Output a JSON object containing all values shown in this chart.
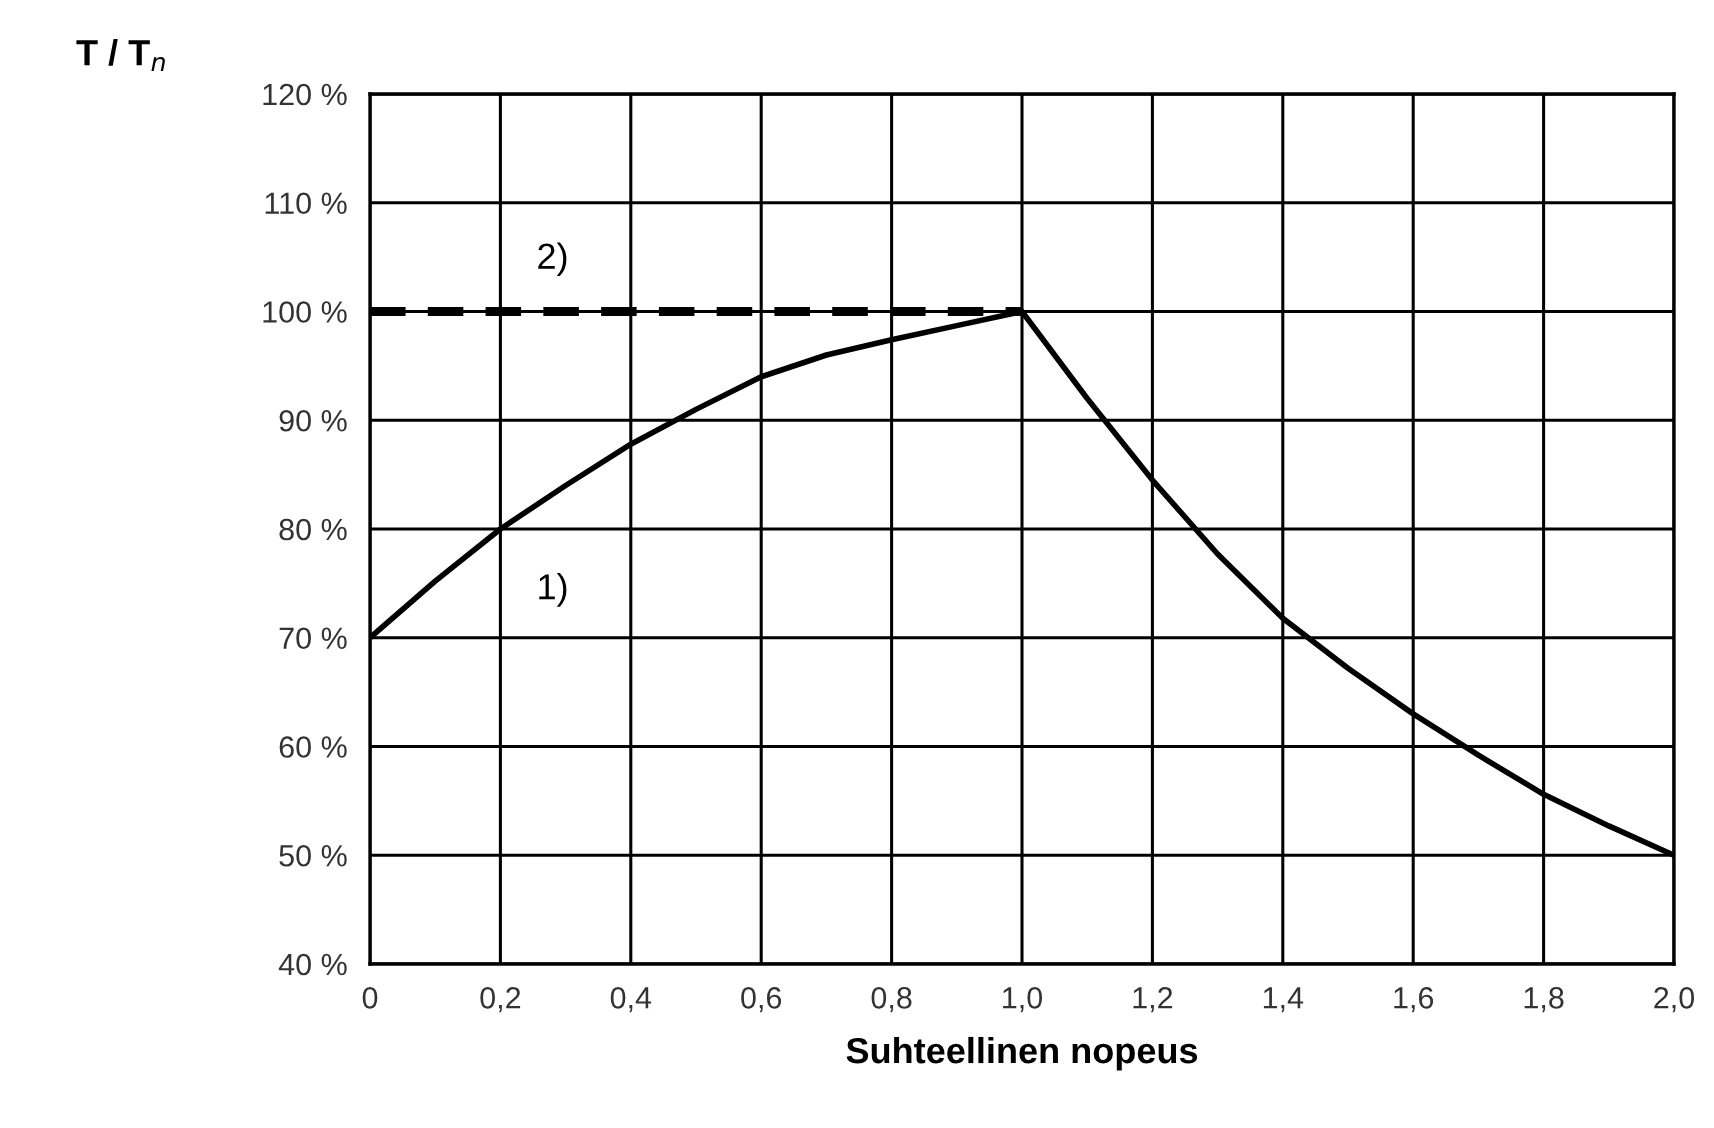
{
  "chart_data": {
    "type": "line",
    "ylabel": "T / T$_{n}$",
    "xlabel": "Suhteellinen nopeus",
    "series": [
      {
        "color": "#000000",
        "line_style": "solid",
        "x": [
          0,
          0.1,
          0.2,
          0.3,
          0.4,
          0.5,
          0.6,
          0.7,
          0.8,
          0.9,
          1.0,
          1.1,
          1.2,
          1.3,
          1.4,
          1.5,
          1.6,
          1.7,
          1.8,
          1.9,
          2.0
        ],
        "values": [
          70,
          75.2,
          80,
          84,
          87.8,
          91,
          94,
          96,
          97.4,
          98.7,
          100,
          92,
          84.5,
          77.7,
          71.8,
          67.2,
          63,
          59.2,
          55.6,
          52.7,
          50
        ]
      },
      {
        "color": "#000000",
        "line_style": "dashed",
        "x": [
          0,
          1.0
        ],
        "values": [
          100,
          100
        ]
      }
    ],
    "annotations": [
      "1)",
      "2)"
    ],
    "xlim": [
      0,
      2.0
    ],
    "ylim": [
      40,
      120
    ],
    "xticks": [
      0,
      {
        "value": 0.2,
        "label": "0,2"
      },
      {
        "value": 0.4,
        "label": "0,4"
      },
      {
        "value": 0.6,
        "label": "0,6"
      },
      {
        "value": 0.8,
        "label": "0,8"
      },
      {
        "value": 1.0,
        "label": "1,0"
      },
      {
        "value": 1.2,
        "label": "1,2"
      },
      {
        "value": 1.4,
        "label": "1,4"
      },
      {
        "value": 1.6,
        "label": "1,6"
      },
      {
        "value": 1.8,
        "label": "1,8"
      },
      {
        "value": 2.0,
        "label": "2,0"
      }
    ],
    "yticks": [
      {
        "value": 40,
        "label": "40 %"
      },
      {
        "value": 50,
        "label": "50 %"
      },
      {
        "value": 60,
        "label": "60 %"
      },
      {
        "value": 70,
        "label": "70 %"
      },
      {
        "value": 80,
        "label": "80 %"
      },
      {
        "value": 90,
        "label": "90 %"
      },
      {
        "value": 100,
        "label": "100 %"
      },
      {
        "value": 110,
        "label": "110 %"
      },
      {
        "value": 120,
        "label": "120 %"
      }
    ],
    "grid": true,
    "legend": false,
    "marker": "none"
  }
}
